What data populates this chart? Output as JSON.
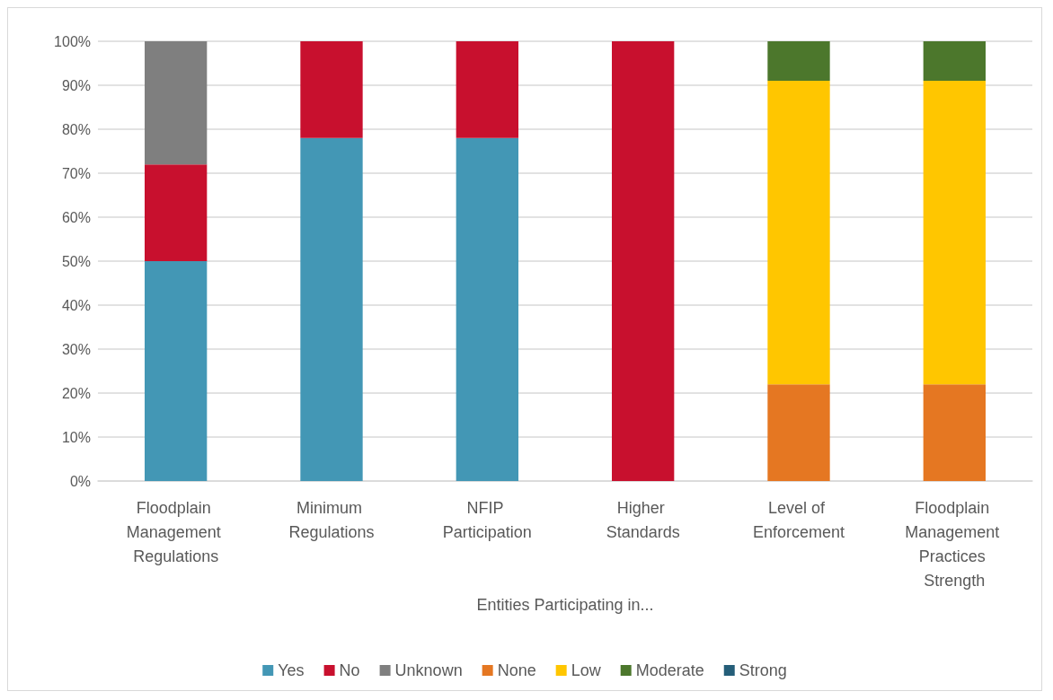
{
  "chart_data": {
    "type": "bar",
    "stacked": true,
    "xlabel": "Entities Participating in...",
    "categories": [
      "Floodplain Management Regulations",
      "Minimum Regulations",
      "NFIP Participation",
      "Higher Standards",
      "Level of Enforcement",
      "Floodplain Management Practices Strength"
    ],
    "series": [
      {
        "name": "Yes",
        "color": "#4397b5",
        "values": [
          50,
          78,
          78,
          0,
          0,
          0
        ]
      },
      {
        "name": "No",
        "color": "#c8102e",
        "values": [
          22,
          22,
          22,
          100,
          0,
          0
        ]
      },
      {
        "name": "Unknown",
        "color": "#7f7f7f",
        "values": [
          28,
          0,
          0,
          0,
          0,
          0
        ]
      },
      {
        "name": "None",
        "color": "#e57722",
        "values": [
          0,
          0,
          0,
          0,
          22,
          22
        ]
      },
      {
        "name": "Low",
        "color": "#ffc600",
        "values": [
          0,
          0,
          0,
          0,
          69,
          69
        ]
      },
      {
        "name": "Moderate",
        "color": "#4c772c",
        "values": [
          0,
          0,
          0,
          0,
          9,
          9
        ]
      },
      {
        "name": "Strong",
        "color": "#255e79",
        "values": [
          0,
          0,
          0,
          0,
          0,
          0
        ]
      }
    ],
    "ylim": [
      0,
      100
    ],
    "yticks": [
      {
        "value": 0,
        "label": "0%"
      },
      {
        "value": 10,
        "label": "10%"
      },
      {
        "value": 20,
        "label": "20%"
      },
      {
        "value": 30,
        "label": "30%"
      },
      {
        "value": 40,
        "label": "40%"
      },
      {
        "value": 50,
        "label": "50%"
      },
      {
        "value": 60,
        "label": "60%"
      },
      {
        "value": 70,
        "label": "70%"
      },
      {
        "value": 80,
        "label": "80%"
      },
      {
        "value": 90,
        "label": "90%"
      },
      {
        "value": 100,
        "label": "100%"
      }
    ],
    "grid": "y",
    "legend": "bottom"
  }
}
